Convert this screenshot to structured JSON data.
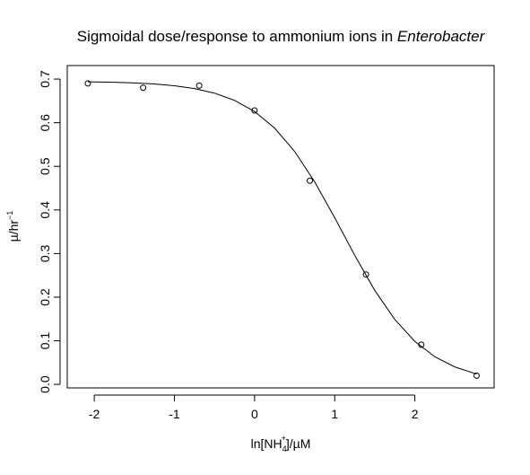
{
  "chart_data": {
    "type": "scatter",
    "title": "Sigmoidal dose/response to ammonium ions in ",
    "title_italic": "Enterobacter",
    "xlabel": {
      "main": "ln[NH",
      "sub": "4",
      "sup": "+",
      "tail": "]/µM"
    },
    "ylabel": {
      "main": "µ/hr",
      "sup": "−1"
    },
    "points": {
      "color": "#000000",
      "x": [
        -2.08,
        -1.39,
        -0.69,
        0,
        0.69,
        1.39,
        2.08,
        2.77
      ],
      "y": [
        0.69,
        0.68,
        0.685,
        0.628,
        0.467,
        0.252,
        0.091,
        0.02
      ]
    },
    "curve": {
      "color": "#000000",
      "x": [
        -2.08,
        -1.75,
        -1.5,
        -1.25,
        -1,
        -0.75,
        -0.5,
        -0.25,
        0,
        0.25,
        0.5,
        0.75,
        1,
        1.25,
        1.5,
        1.75,
        2,
        2.25,
        2.5,
        2.77
      ],
      "y": [
        0.6938,
        0.6927,
        0.6912,
        0.6887,
        0.6847,
        0.6782,
        0.6678,
        0.6512,
        0.6257,
        0.5876,
        0.5341,
        0.4644,
        0.3821,
        0.2958,
        0.2155,
        0.1489,
        0.0986,
        0.0633,
        0.0399,
        0.0238
      ]
    },
    "xlim": [
      -2.337,
      2.989
    ],
    "xticks": [
      -2,
      -1,
      0,
      1,
      2
    ],
    "ylim": [
      -0.008,
      0.731
    ],
    "yticks": [
      {
        "value": 0,
        "label": "0.0"
      },
      0.1,
      0.2,
      0.3,
      0.4,
      0.5,
      0.6,
      0.7
    ]
  }
}
